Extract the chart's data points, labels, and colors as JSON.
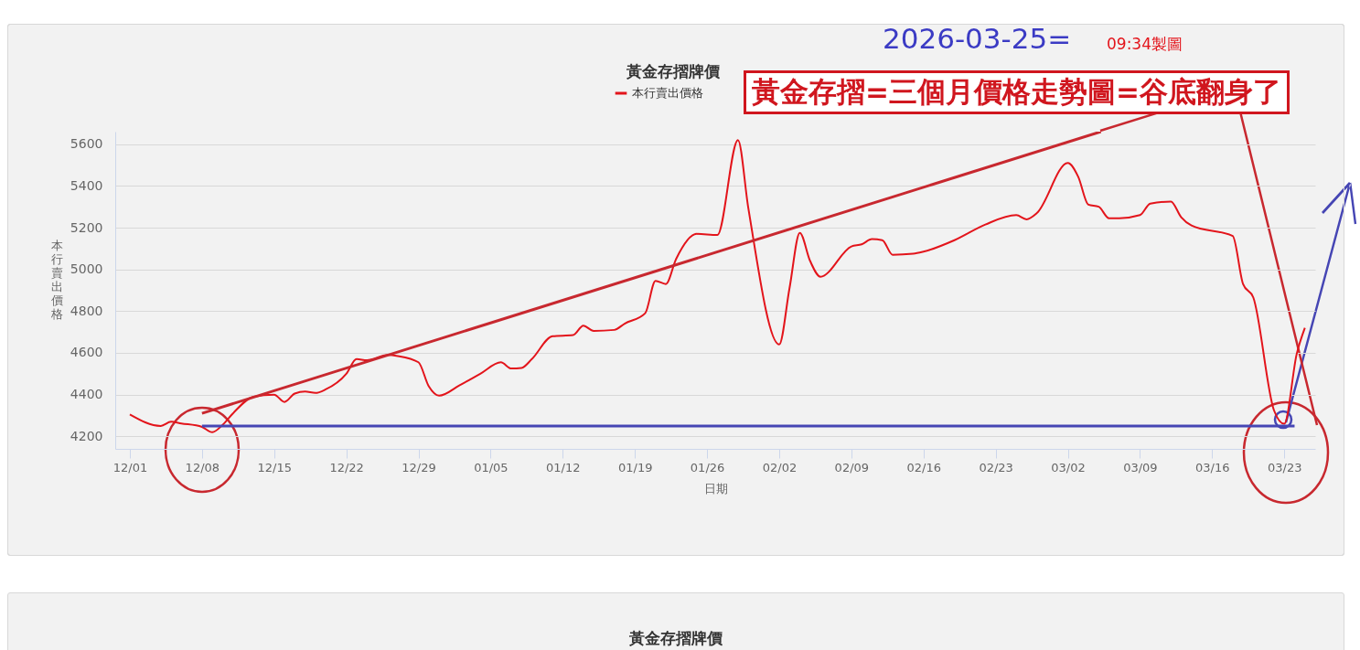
{
  "chart_data": [
    {
      "type": "line",
      "title": "黃金存摺牌價",
      "xlabel": "日期",
      "ylabel": "本行賣出價格",
      "legend": "top",
      "grid": "y",
      "marker": "none",
      "line_style": "solid",
      "xlim": [
        "2025-11-29T14:00",
        "2026-03-26"
      ],
      "ylim": [
        4140,
        5660
      ],
      "yticks": [
        4200,
        4400,
        4600,
        4800,
        5000,
        5200,
        5400,
        5600
      ],
      "xticks": [
        {
          "value": "2025-12-01",
          "label": "12/01"
        },
        {
          "value": "2025-12-08",
          "label": "12/08"
        },
        {
          "value": "2025-12-15",
          "label": "12/15"
        },
        {
          "value": "2025-12-22",
          "label": "12/22"
        },
        {
          "value": "2025-12-29",
          "label": "12/29"
        },
        {
          "value": "2026-01-05",
          "label": "01/05"
        },
        {
          "value": "2026-01-12",
          "label": "01/12"
        },
        {
          "value": "2026-01-19",
          "label": "01/19"
        },
        {
          "value": "2026-01-26",
          "label": "01/26"
        },
        {
          "value": "2026-02-02",
          "label": "02/02"
        },
        {
          "value": "2026-02-09",
          "label": "02/09"
        },
        {
          "value": "2026-02-16",
          "label": "02/16"
        },
        {
          "value": "2026-02-23",
          "label": "02/23"
        },
        {
          "value": "2026-03-02",
          "label": "03/02"
        },
        {
          "value": "2026-03-09",
          "label": "03/09"
        },
        {
          "value": "2026-03-16",
          "label": "03/16"
        },
        {
          "value": "2026-03-23",
          "label": "03/23"
        }
      ],
      "series": [
        {
          "name": "本行賣出價格",
          "color": "#e3141b",
          "type": "line",
          "x": [
            "2025-12-01",
            "2025-12-04",
            "2025-12-05",
            "2025-12-06",
            "2025-12-08",
            "2025-12-09",
            "2025-12-10",
            "2025-12-11",
            "2025-12-13",
            "2025-12-15",
            "2025-12-16",
            "2025-12-17",
            "2025-12-18",
            "2025-12-19",
            "2025-12-20",
            "2025-12-22",
            "2025-12-23",
            "2025-12-24",
            "2025-12-26",
            "2025-12-27",
            "2025-12-29",
            "2025-12-30",
            "2025-12-31",
            "2026-01-02",
            "2026-01-04",
            "2026-01-06",
            "2026-01-07",
            "2026-01-08",
            "2026-01-09",
            "2026-01-11",
            "2026-01-13",
            "2026-01-14",
            "2026-01-15",
            "2026-01-17",
            "2026-01-18",
            "2026-01-20",
            "2026-01-21",
            "2026-01-22",
            "2026-01-23",
            "2026-01-25",
            "2026-01-27",
            "2026-01-29",
            "2026-01-30",
            "2026-02-02",
            "2026-02-03",
            "2026-02-04",
            "2026-02-05",
            "2026-02-06",
            "2026-02-09",
            "2026-02-10",
            "2026-02-11",
            "2026-02-12",
            "2026-02-13",
            "2026-02-15",
            "2026-02-16",
            "2026-02-19",
            "2026-02-22",
            "2026-02-25",
            "2026-02-26",
            "2026-02-27",
            "2026-03-02",
            "2026-03-03",
            "2026-03-04",
            "2026-03-05",
            "2026-03-06",
            "2026-03-07",
            "2026-03-09",
            "2026-03-10",
            "2026-03-12",
            "2026-03-13",
            "2026-03-14",
            "2026-03-18",
            "2026-03-19",
            "2026-03-20",
            "2026-03-22",
            "2026-03-23",
            "2026-03-24T05:00",
            "2026-03-25"
          ],
          "values": [
            4305,
            4250,
            4270,
            4262,
            4245,
            4220,
            4255,
            4310,
            4390,
            4400,
            4365,
            4405,
            4415,
            4408,
            4425,
            4500,
            4570,
            4565,
            4590,
            4585,
            4555,
            4440,
            4395,
            4445,
            4500,
            4555,
            4525,
            4528,
            4570,
            4680,
            4685,
            4730,
            4705,
            4710,
            4740,
            4790,
            4945,
            4930,
            5050,
            5170,
            5165,
            5620,
            5295,
            4640,
            4910,
            5175,
            5040,
            4965,
            5110,
            5120,
            5145,
            5140,
            5070,
            5075,
            5085,
            5140,
            5215,
            5260,
            5240,
            5270,
            5510,
            5445,
            5310,
            5300,
            5245,
            5245,
            5260,
            5315,
            5325,
            5250,
            5210,
            5160,
            4930,
            4865,
            4325,
            4260,
            4595,
            4720
          ]
        },
        {
          "color": "#c8282f",
          "type": "line",
          "x": [
            "2025-12-08",
            "2026-03-05T05:00"
          ],
          "values": [
            4310,
            5660
          ]
        },
        {
          "color": "#4646b4",
          "type": "line",
          "x": [
            "2025-12-08",
            "2026-03-24"
          ],
          "values": [
            4250,
            4250
          ]
        }
      ],
      "annotations": [
        "2026-03-25=",
        "09:34製圖",
        "黃金存摺=三個月價格走勢圖=谷底翻身了"
      ]
    },
    {
      "type": "other",
      "title": "黃金存摺牌價"
    }
  ]
}
